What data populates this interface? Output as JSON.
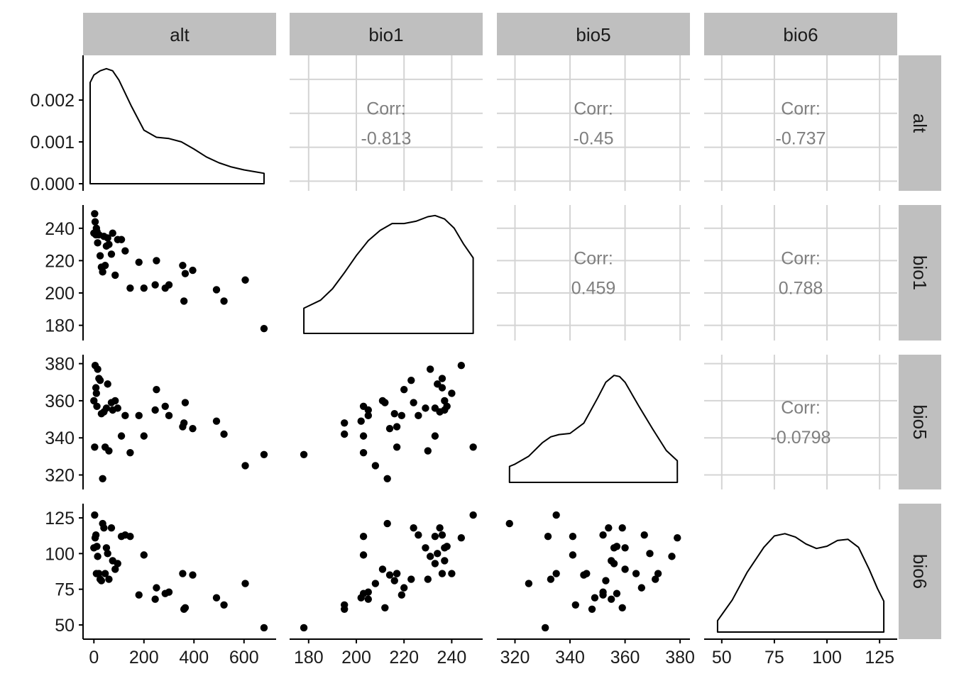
{
  "variables": [
    "alt",
    "bio1",
    "bio5",
    "bio6"
  ],
  "colors": {
    "strip_fill": "#bfbfbf",
    "grid": "#d4d4d4",
    "points": "#000000",
    "corr_text": "#7f7f7f"
  },
  "chart_data": {
    "type": "scatter",
    "title": "",
    "layout": "pairs-matrix",
    "diagonal": "density",
    "lower": "scatter",
    "upper": "correlation",
    "corr_label": "Corr:",
    "grid_upper": true,
    "axes": {
      "alt": {
        "range": [
          -15,
          700
        ],
        "ticks": [
          0,
          200,
          400,
          600
        ]
      },
      "bio1": {
        "range": [
          175,
          250
        ],
        "ticks": [
          180,
          200,
          220,
          240
        ]
      },
      "bio5": {
        "range": [
          316,
          381
        ],
        "ticks": [
          320,
          340,
          360,
          380
        ]
      },
      "bio6": {
        "range": [
          45,
          130
        ],
        "ticks": [
          50,
          75,
          100,
          125
        ]
      }
    },
    "density_y_axis": {
      "range": [
        0,
        0.0029
      ],
      "ticks": [
        "0.000",
        "0.001",
        "0.002"
      ],
      "tick_values": [
        0,
        0.001,
        0.002
      ]
    },
    "correlations": [
      {
        "row": "alt",
        "col": "bio1",
        "value": "-0.813"
      },
      {
        "row": "alt",
        "col": "bio5",
        "value": "-0.45"
      },
      {
        "row": "alt",
        "col": "bio6",
        "value": "-0.737"
      },
      {
        "row": "bio1",
        "col": "bio5",
        "value": "0.459"
      },
      {
        "row": "bio1",
        "col": "bio6",
        "value": "0.788"
      },
      {
        "row": "bio5",
        "col": "bio6",
        "value": "-0.0798"
      }
    ],
    "observations": {
      "alt": [
        0,
        3,
        5,
        8,
        10,
        12,
        15,
        20,
        25,
        30,
        35,
        40,
        45,
        50,
        55,
        60,
        70,
        75,
        85,
        95,
        110,
        125,
        145,
        180,
        200,
        245,
        250,
        285,
        300,
        355,
        360,
        365,
        395,
        490,
        520,
        605,
        680
      ],
      "bio1": [
        237,
        249,
        244,
        236,
        240,
        238,
        231,
        236,
        223,
        216,
        213,
        235,
        217,
        229,
        234,
        230,
        224,
        237,
        211,
        233,
        233,
        226,
        203,
        219,
        203,
        205,
        220,
        203,
        205,
        217,
        195,
        212,
        214,
        202,
        195,
        208,
        178
      ],
      "bio5": [
        360,
        335,
        379,
        367,
        364,
        357,
        377,
        372,
        371,
        353,
        318,
        354,
        335,
        356,
        369,
        333,
        359,
        355,
        360,
        356,
        341,
        352,
        332,
        352,
        341,
        355,
        366,
        357,
        352,
        346,
        348,
        359,
        345,
        349,
        342,
        325,
        331
      ],
      "bio6": [
        104,
        127,
        111,
        113,
        86,
        105,
        98,
        86,
        82,
        81,
        121,
        118,
        86,
        104,
        100,
        82,
        118,
        95,
        89,
        93,
        112,
        113,
        112,
        71,
        99,
        68,
        76,
        72,
        73,
        86,
        61,
        62,
        85,
        69,
        64,
        79,
        48
      ]
    },
    "densities": {
      "alt": {
        "x": [
          -15,
          0,
          25,
          50,
          75,
          100,
          150,
          200,
          250,
          300,
          350,
          400,
          450,
          500,
          550,
          600,
          650,
          680
        ],
        "y": [
          0.00242,
          0.0026,
          0.0027,
          0.00275,
          0.0027,
          0.00248,
          0.00185,
          0.00128,
          0.00111,
          0.00108,
          0.001,
          0.00083,
          0.00064,
          0.0005,
          0.0004,
          0.00033,
          0.00028,
          0.00025
        ]
      },
      "bio1": {
        "x": [
          178,
          185,
          190,
          195,
          200,
          205,
          210,
          215,
          220,
          225,
          230,
          233,
          237,
          241,
          245,
          249
        ],
        "y": [
          0.22,
          0.29,
          0.39,
          0.53,
          0.68,
          0.81,
          0.9,
          0.96,
          0.96,
          0.98,
          1.02,
          1.03,
          1.0,
          0.92,
          0.78,
          0.66
        ]
      },
      "bio5": {
        "x": [
          318,
          320,
          325,
          330,
          333,
          336,
          340,
          345,
          350,
          353,
          356,
          358,
          360,
          365,
          370,
          375,
          379
        ],
        "y": [
          0.14,
          0.16,
          0.23,
          0.35,
          0.4,
          0.42,
          0.43,
          0.52,
          0.74,
          0.88,
          0.94,
          0.93,
          0.88,
          0.67,
          0.47,
          0.28,
          0.19
        ]
      },
      "bio6": {
        "x": [
          48,
          55,
          62,
          70,
          75,
          80,
          85,
          90,
          95,
          100,
          105,
          110,
          115,
          120,
          124,
          127
        ],
        "y": [
          0.1,
          0.28,
          0.52,
          0.74,
          0.84,
          0.86,
          0.83,
          0.77,
          0.73,
          0.75,
          0.8,
          0.81,
          0.74,
          0.55,
          0.38,
          0.27
        ]
      }
    }
  }
}
